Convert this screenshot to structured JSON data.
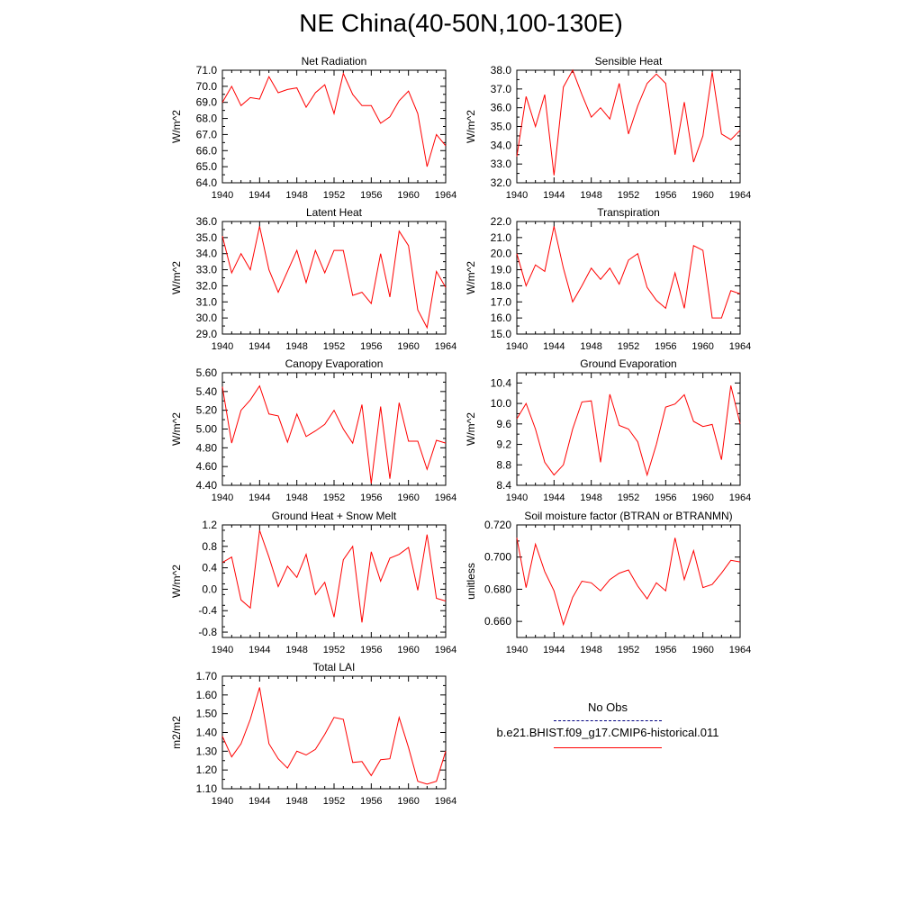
{
  "title": "NE China(40-50N,100-130E)",
  "legend": {
    "obs_label": "No Obs",
    "run_label": "b.e21.BHIST.f09_g17.CMIP6-historical.011",
    "obs_color": "#000080",
    "run_color": "#ff0000"
  },
  "chart_data": [
    {
      "type": "line",
      "title": "Net Radiation",
      "ylabel": "W/m^2",
      "xlim": [
        1940,
        1964
      ],
      "ylim": [
        64.0,
        71.0
      ],
      "xticks": [
        1940,
        1944,
        1948,
        1952,
        1956,
        1960,
        1964
      ],
      "yticks": [
        "64.0",
        "65.0",
        "66.0",
        "67.0",
        "68.0",
        "69.0",
        "70.0",
        "71.0"
      ],
      "x": [
        1940,
        1941,
        1942,
        1943,
        1944,
        1945,
        1946,
        1947,
        1948,
        1949,
        1950,
        1951,
        1952,
        1953,
        1954,
        1955,
        1956,
        1957,
        1958,
        1959,
        1960,
        1961,
        1962,
        1963,
        1964
      ],
      "series": [
        {
          "color": "#ff0000",
          "values": [
            69.0,
            70.0,
            68.8,
            69.3,
            69.2,
            70.6,
            69.6,
            69.8,
            69.9,
            68.7,
            69.6,
            70.1,
            68.3,
            70.8,
            69.5,
            68.8,
            68.8,
            67.7,
            68.1,
            69.1,
            69.7,
            68.3,
            65.0,
            67.0,
            66.3
          ]
        }
      ]
    },
    {
      "type": "line",
      "title": "Sensible Heat",
      "ylabel": "W/m^2",
      "xlim": [
        1940,
        1964
      ],
      "ylim": [
        32.0,
        38.0
      ],
      "xticks": [
        1940,
        1944,
        1948,
        1952,
        1956,
        1960,
        1964
      ],
      "yticks": [
        "32.0",
        "33.0",
        "34.0",
        "35.0",
        "36.0",
        "37.0",
        "38.0"
      ],
      "x": [
        1940,
        1941,
        1942,
        1943,
        1944,
        1945,
        1946,
        1947,
        1948,
        1949,
        1950,
        1951,
        1952,
        1953,
        1954,
        1955,
        1956,
        1957,
        1958,
        1959,
        1960,
        1961,
        1962,
        1963,
        1964
      ],
      "series": [
        {
          "color": "#ff0000",
          "values": [
            33.4,
            36.6,
            35.0,
            36.7,
            32.4,
            37.1,
            38.0,
            36.7,
            35.5,
            36.0,
            35.4,
            37.3,
            34.6,
            36.1,
            37.3,
            37.8,
            37.3,
            33.5,
            36.3,
            33.1,
            34.5,
            37.9,
            34.6,
            34.3,
            34.8
          ]
        }
      ]
    },
    {
      "type": "line",
      "title": "Latent Heat",
      "ylabel": "W/m^2",
      "xlim": [
        1940,
        1964
      ],
      "ylim": [
        29.0,
        36.0
      ],
      "xticks": [
        1940,
        1944,
        1948,
        1952,
        1956,
        1960,
        1964
      ],
      "yticks": [
        "29.0",
        "30.0",
        "31.0",
        "32.0",
        "33.0",
        "34.0",
        "35.0",
        "36.0"
      ],
      "x": [
        1940,
        1941,
        1942,
        1943,
        1944,
        1945,
        1946,
        1947,
        1948,
        1949,
        1950,
        1951,
        1952,
        1953,
        1954,
        1955,
        1956,
        1957,
        1958,
        1959,
        1960,
        1961,
        1962,
        1963,
        1964
      ],
      "series": [
        {
          "color": "#ff0000",
          "values": [
            35.1,
            32.8,
            34.0,
            33.0,
            35.7,
            33.0,
            31.6,
            32.9,
            34.2,
            32.2,
            34.2,
            32.8,
            34.2,
            34.2,
            31.4,
            31.6,
            30.9,
            34.0,
            31.3,
            35.4,
            34.5,
            30.5,
            29.4,
            32.9,
            31.9
          ]
        }
      ]
    },
    {
      "type": "line",
      "title": "Transpiration",
      "ylabel": "W/m^2",
      "xlim": [
        1940,
        1964
      ],
      "ylim": [
        15.0,
        22.0
      ],
      "xticks": [
        1940,
        1944,
        1948,
        1952,
        1956,
        1960,
        1964
      ],
      "yticks": [
        "15.0",
        "16.0",
        "17.0",
        "18.0",
        "19.0",
        "20.0",
        "21.0",
        "22.0"
      ],
      "x": [
        1940,
        1941,
        1942,
        1943,
        1944,
        1945,
        1946,
        1947,
        1948,
        1949,
        1950,
        1951,
        1952,
        1953,
        1954,
        1955,
        1956,
        1957,
        1958,
        1959,
        1960,
        1961,
        1962,
        1963,
        1964
      ],
      "series": [
        {
          "color": "#ff0000",
          "values": [
            20.0,
            18.0,
            19.3,
            18.9,
            21.7,
            19.1,
            17.0,
            18.0,
            19.1,
            18.4,
            19.1,
            18.1,
            19.6,
            20.0,
            17.9,
            17.1,
            16.6,
            18.8,
            16.6,
            20.5,
            20.2,
            16.0,
            16.0,
            17.7,
            17.5
          ]
        }
      ]
    },
    {
      "type": "line",
      "title": "Canopy Evaporation",
      "ylabel": "W/m^2",
      "xlim": [
        1940,
        1964
      ],
      "ylim": [
        4.4,
        5.6
      ],
      "xticks": [
        1940,
        1944,
        1948,
        1952,
        1956,
        1960,
        1964
      ],
      "yticks": [
        "4.40",
        "4.60",
        "4.80",
        "5.00",
        "5.20",
        "5.40",
        "5.60"
      ],
      "x": [
        1940,
        1941,
        1942,
        1943,
        1944,
        1945,
        1946,
        1947,
        1948,
        1949,
        1950,
        1951,
        1952,
        1953,
        1954,
        1955,
        1956,
        1957,
        1958,
        1959,
        1960,
        1961,
        1962,
        1963,
        1964
      ],
      "series": [
        {
          "color": "#ff0000",
          "values": [
            5.45,
            4.85,
            5.2,
            5.31,
            5.46,
            5.16,
            5.14,
            4.86,
            5.16,
            4.92,
            4.98,
            5.05,
            5.2,
            5.0,
            4.85,
            5.26,
            4.42,
            5.24,
            4.47,
            5.28,
            4.87,
            4.87,
            4.57,
            4.88,
            4.85
          ]
        }
      ]
    },
    {
      "type": "line",
      "title": "Ground Evaporation",
      "ylabel": "W/m^2",
      "xlim": [
        1940,
        1964
      ],
      "ylim": [
        8.4,
        10.6
      ],
      "xticks": [
        1940,
        1944,
        1948,
        1952,
        1956,
        1960,
        1964
      ],
      "yticks": [
        "8.4",
        "8.8",
        "9.2",
        "9.6",
        "10.0",
        "10.4"
      ],
      "x": [
        1940,
        1941,
        1942,
        1943,
        1944,
        1945,
        1946,
        1947,
        1948,
        1949,
        1950,
        1951,
        1952,
        1953,
        1954,
        1955,
        1956,
        1957,
        1958,
        1959,
        1960,
        1961,
        1962,
        1963,
        1964
      ],
      "series": [
        {
          "color": "#ff0000",
          "values": [
            9.7,
            10.0,
            9.5,
            8.85,
            8.6,
            8.8,
            9.5,
            10.03,
            10.05,
            8.85,
            10.18,
            9.57,
            9.5,
            9.25,
            8.6,
            9.2,
            9.93,
            9.99,
            10.17,
            9.65,
            9.55,
            9.59,
            8.9,
            10.35,
            9.6
          ]
        }
      ]
    },
    {
      "type": "line",
      "title": "Ground Heat + Snow Melt",
      "ylabel": "W/m^2",
      "xlim": [
        1940,
        1964
      ],
      "ylim": [
        -0.9,
        1.2
      ],
      "xticks": [
        1940,
        1944,
        1948,
        1952,
        1956,
        1960,
        1964
      ],
      "yticks": [
        "-0.8",
        "-0.4",
        "0.0",
        "0.4",
        "0.8",
        "1.2"
      ],
      "x": [
        1940,
        1941,
        1942,
        1943,
        1944,
        1945,
        1946,
        1947,
        1948,
        1949,
        1950,
        1951,
        1952,
        1953,
        1954,
        1955,
        1956,
        1957,
        1958,
        1959,
        1960,
        1961,
        1962,
        1963,
        1964
      ],
      "series": [
        {
          "color": "#ff0000",
          "values": [
            0.5,
            0.6,
            -0.2,
            -0.35,
            1.1,
            0.6,
            0.05,
            0.43,
            0.22,
            0.65,
            -0.1,
            0.13,
            -0.52,
            0.55,
            0.8,
            -0.62,
            0.7,
            0.15,
            0.58,
            0.65,
            0.78,
            -0.02,
            1.02,
            -0.17,
            -0.22
          ]
        }
      ]
    },
    {
      "type": "line",
      "title": "Soil moisture factor (BTRAN or BTRANMN)",
      "ylabel": "unitless",
      "xlim": [
        1940,
        1964
      ],
      "ylim": [
        0.65,
        0.72
      ],
      "xticks": [
        1940,
        1944,
        1948,
        1952,
        1956,
        1960,
        1964
      ],
      "yticks": [
        "0.660",
        "0.680",
        "0.700",
        "0.720"
      ],
      "x": [
        1940,
        1941,
        1942,
        1943,
        1944,
        1945,
        1946,
        1947,
        1948,
        1949,
        1950,
        1951,
        1952,
        1953,
        1954,
        1955,
        1956,
        1957,
        1958,
        1959,
        1960,
        1961,
        1962,
        1963,
        1964
      ],
      "series": [
        {
          "color": "#ff0000",
          "values": [
            0.712,
            0.681,
            0.708,
            0.691,
            0.679,
            0.658,
            0.675,
            0.685,
            0.684,
            0.679,
            0.686,
            0.69,
            0.692,
            0.682,
            0.674,
            0.684,
            0.679,
            0.712,
            0.686,
            0.704,
            0.681,
            0.683,
            0.69,
            0.698,
            0.697
          ]
        }
      ]
    },
    {
      "type": "line",
      "title": "Total LAI",
      "ylabel": "m2/m2",
      "xlim": [
        1940,
        1964
      ],
      "ylim": [
        1.1,
        1.7
      ],
      "xticks": [
        1940,
        1944,
        1948,
        1952,
        1956,
        1960,
        1964
      ],
      "yticks": [
        "1.10",
        "1.20",
        "1.30",
        "1.40",
        "1.50",
        "1.60",
        "1.70"
      ],
      "x": [
        1940,
        1941,
        1942,
        1943,
        1944,
        1945,
        1946,
        1947,
        1948,
        1949,
        1950,
        1951,
        1952,
        1953,
        1954,
        1955,
        1956,
        1957,
        1958,
        1959,
        1960,
        1961,
        1962,
        1963,
        1964
      ],
      "series": [
        {
          "color": "#ff0000",
          "values": [
            1.38,
            1.27,
            1.34,
            1.47,
            1.64,
            1.34,
            1.26,
            1.21,
            1.3,
            1.28,
            1.31,
            1.39,
            1.48,
            1.47,
            1.24,
            1.245,
            1.17,
            1.255,
            1.26,
            1.48,
            1.32,
            1.14,
            1.125,
            1.14,
            1.3
          ]
        }
      ]
    }
  ]
}
